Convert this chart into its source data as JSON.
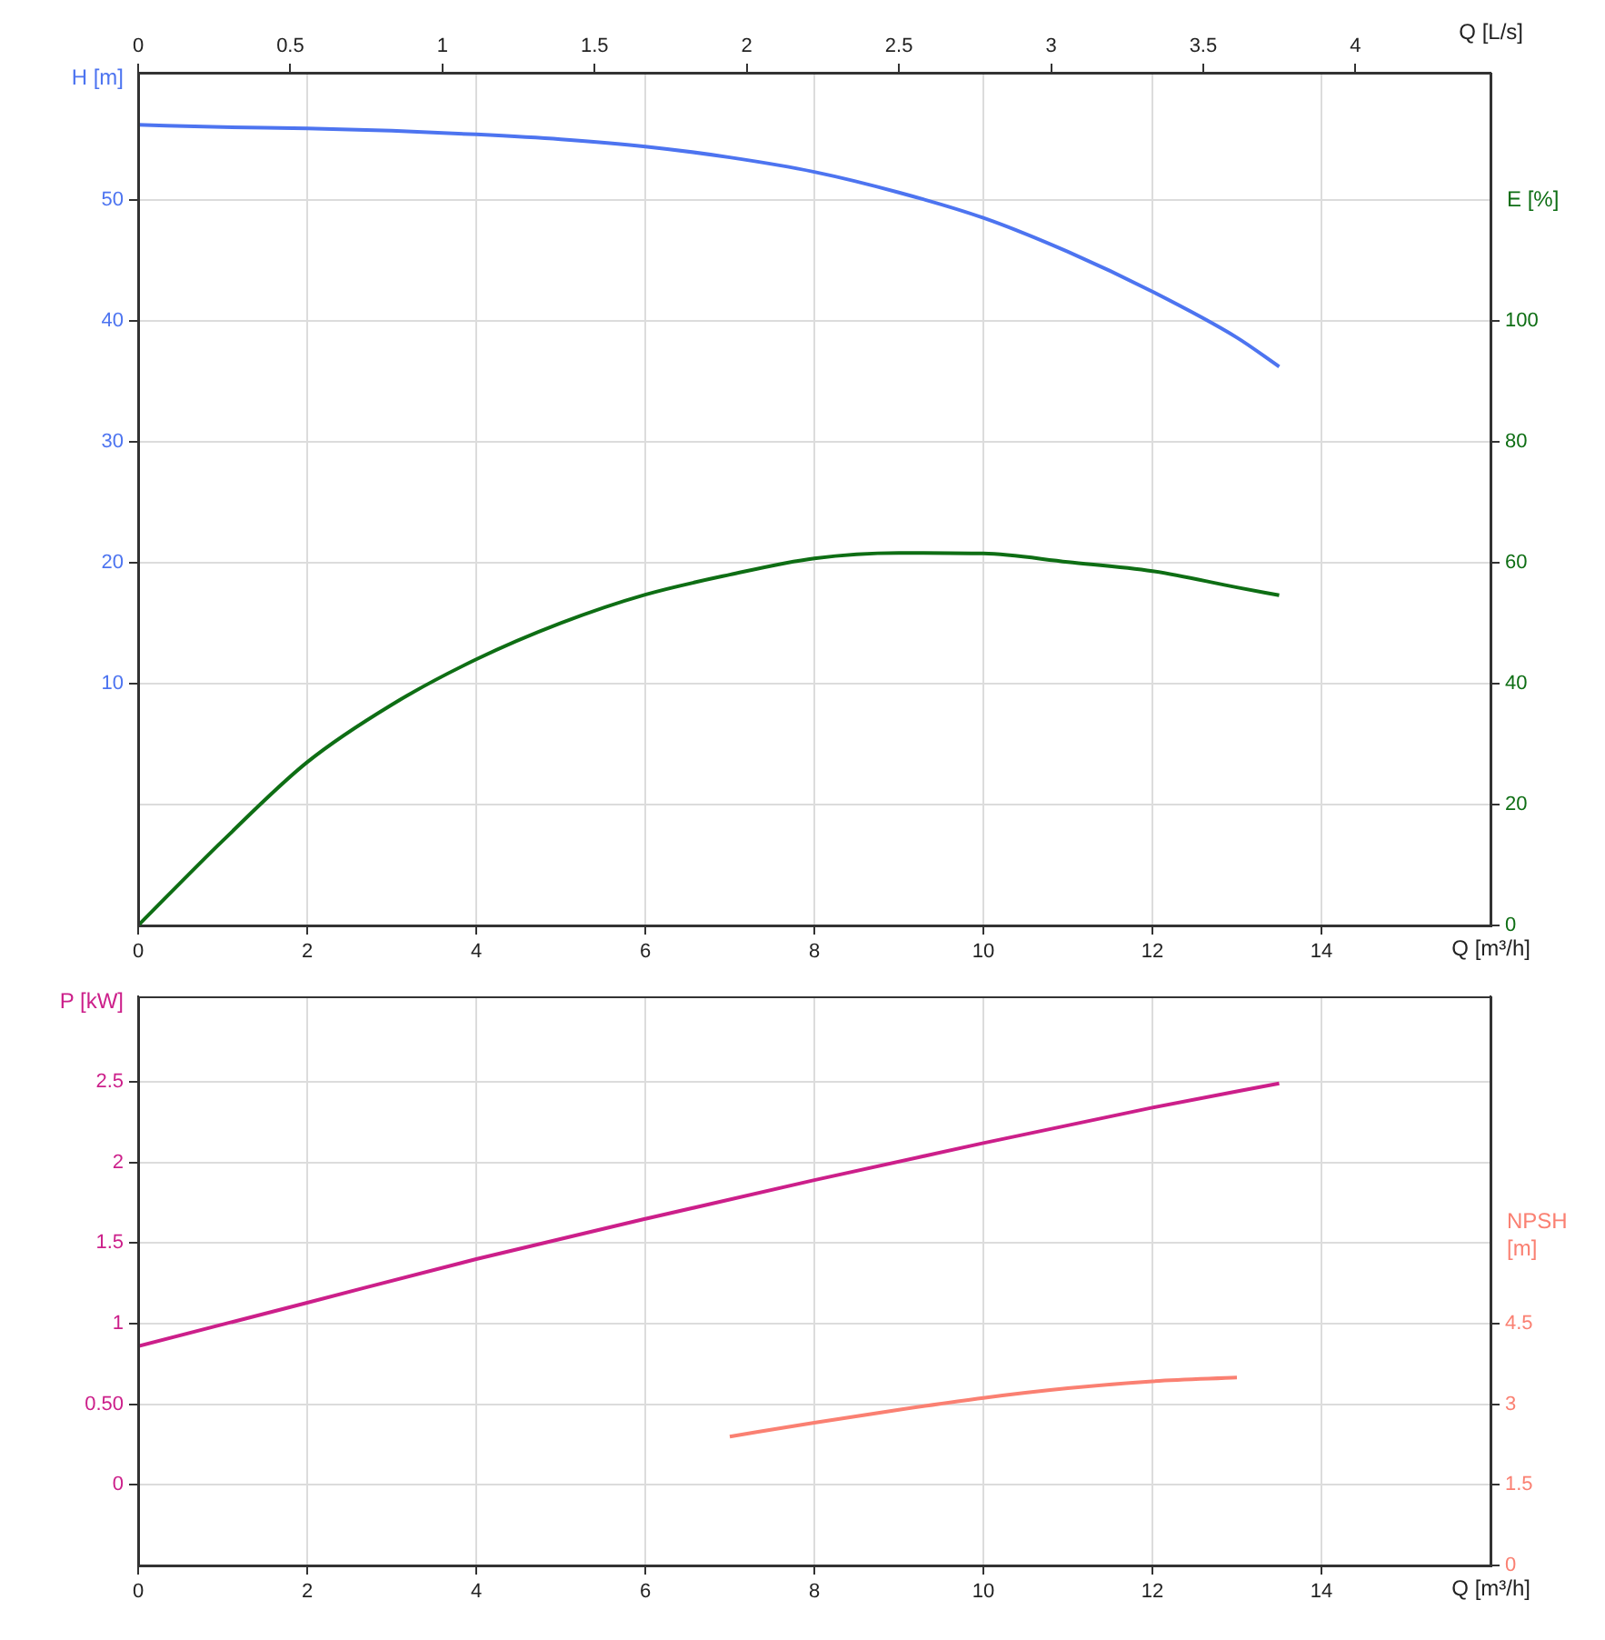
{
  "chart_data": [
    {
      "type": "line",
      "xlabel": "Q [m³/h]",
      "x2label": "Q [L/s]",
      "ylabel": "H [m]",
      "y2label": "E [%]",
      "xlim": [
        0,
        16
      ],
      "xticks": [
        0,
        2,
        4,
        6,
        8,
        10,
        12,
        14
      ],
      "x2lim": [
        0,
        4.444
      ],
      "x2ticks": [
        0,
        0.5,
        1,
        1.5,
        2,
        2.5,
        3,
        3.5,
        4
      ],
      "ylim": [
        -10,
        60.5
      ],
      "yticks": [
        10,
        20,
        30,
        40,
        50
      ],
      "y2lim": [
        0,
        141
      ],
      "y2ticks": [
        0,
        20,
        40,
        60,
        80,
        100
      ],
      "grid": true,
      "series": [
        {
          "color": "#4d74f0",
          "x": [
            0,
            1,
            2,
            3,
            4,
            5,
            6,
            7,
            8,
            9,
            10,
            11,
            12,
            13,
            13.5
          ],
          "values": [
            56.2,
            56.0,
            55.9,
            55.7,
            55.4,
            55.0,
            54.4,
            53.5,
            52.3,
            50.6,
            48.5,
            45.7,
            42.4,
            38.6,
            36.2
          ]
        },
        {
          "color": "#0e6e14",
          "axis": "y2",
          "x": [
            0,
            1,
            2,
            3,
            4,
            5,
            6,
            7,
            8,
            9,
            10,
            11,
            12,
            13,
            13.5
          ],
          "values": [
            0,
            14,
            27,
            36.5,
            44,
            50,
            54.7,
            58,
            60.7,
            61.6,
            61.5,
            60.1,
            58.6,
            55.9,
            54.6
          ]
        }
      ]
    },
    {
      "type": "line",
      "xlabel": "Q [m³/h]",
      "ylabel": "P [kW]",
      "y2label": "NPSH [m]",
      "xlim": [
        0,
        16
      ],
      "xticks": [
        0,
        2,
        4,
        6,
        8,
        10,
        12,
        14
      ],
      "ylim": [
        -0.5,
        3.03
      ],
      "yticks": [
        0,
        {
          "value": 0.5,
          "label": "0.50"
        },
        1,
        1.5,
        2,
        2.5
      ],
      "y2lim": [
        0,
        10.6
      ],
      "y2ticks": [
        0,
        1.5,
        3,
        4.5
      ],
      "grid": true,
      "series": [
        {
          "color": "#cc1f8a",
          "x": [
            0,
            2,
            4,
            6,
            8,
            10,
            12,
            13.5
          ],
          "values": [
            0.86,
            1.13,
            1.4,
            1.65,
            1.89,
            2.12,
            2.34,
            2.49
          ]
        },
        {
          "color": "#fa8072",
          "axis": "y2",
          "x": [
            7,
            8,
            9,
            10,
            11,
            12,
            13
          ],
          "values": [
            2.4,
            2.66,
            2.9,
            3.12,
            3.3,
            3.43,
            3.5
          ]
        }
      ]
    }
  ]
}
